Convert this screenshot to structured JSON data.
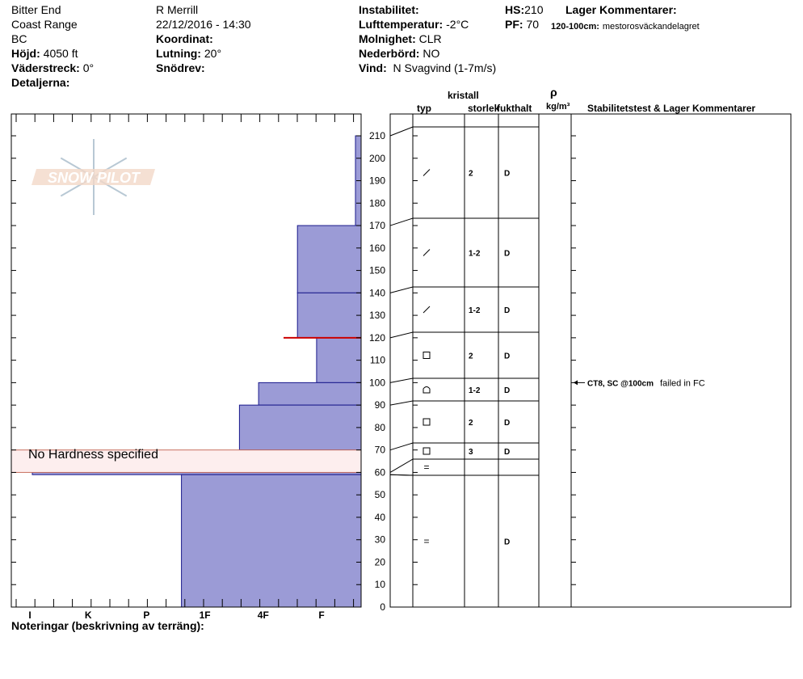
{
  "header": {
    "location": "Bitter End",
    "range": "Coast Range",
    "state": "BC",
    "elevation_label": "Höjd:",
    "elevation_value": "4050 ft",
    "aspect_label": "Väderstreck:",
    "aspect_value": "0°",
    "details_label": "Detaljerna:",
    "observer": "R Merrill",
    "datetime": "22/12/2016 - 14:30",
    "coord_label": "Koordinat:",
    "slope_label": "Lutning:",
    "slope_value": "20°",
    "drift_label": "Snödrev:",
    "instability_label": "Instabilitet:",
    "airtemp_label": "Lufttemperatur:",
    "airtemp_value": "-2°C",
    "sky_label": "Molnighet:",
    "sky_value": "CLR",
    "precip_label": "Nederbörd:",
    "precip_value": "NO",
    "wind_label": "Vind:",
    "wind_value": "N Svagvind (1-7m/s)",
    "hs_label": "HS:",
    "hs_value": "210",
    "pf_label": "PF:",
    "pf_value": "70",
    "layer_comments_label": "Lager Kommentarer:",
    "layer_comment_range": "120-100cm:",
    "layer_comment_text": "mestorosväckandelagret"
  },
  "columns": {
    "type": "typ",
    "crystal": "kristall",
    "size": "storlek",
    "moisture": "fukthalt",
    "rho": "ρ",
    "density_unit": "kg/m³",
    "stability": "Stabilitetstest & Lager Kommentarer"
  },
  "footer": {
    "notes_label": "Noteringar (beskrivning av terräng):"
  },
  "logo_text": "SNOW PILOT",
  "chart_data": {
    "type": "bar",
    "orientation": "horizontal",
    "y_axis": {
      "min": 0,
      "max": 210,
      "ticks": [
        0,
        10,
        20,
        30,
        40,
        50,
        60,
        70,
        80,
        90,
        100,
        110,
        120,
        130,
        140,
        150,
        160,
        170,
        180,
        190,
        200,
        210
      ]
    },
    "hardness_scale": [
      "I",
      "K",
      "P",
      "1F",
      "4F",
      "F"
    ],
    "hardness_index": {
      "I": 6,
      "K": 5,
      "P": 4,
      "1F": 3,
      "4F": 2,
      "F": 1
    },
    "layers": [
      {
        "bottom": 170,
        "top": 210,
        "hardness": "F",
        "grain": "/",
        "size": "2",
        "moisture": "D"
      },
      {
        "bottom": 140,
        "top": 170,
        "hardness": "4F",
        "grain": "/",
        "size": "1-2",
        "moisture": "D"
      },
      {
        "bottom": 120,
        "top": 140,
        "hardness": "4F",
        "grain": "/",
        "size": "1-2",
        "moisture": "D"
      },
      {
        "bottom": 100,
        "top": 120,
        "hardness": "4F-",
        "hardness_index": 1.67,
        "grain": "□",
        "size": "2",
        "moisture": "D"
      },
      {
        "bottom": 90,
        "top": 100,
        "hardness": "1F+",
        "hardness_index": 2.67,
        "grain": "⌂",
        "size": "1-2",
        "moisture": "D"
      },
      {
        "bottom": 70,
        "top": 90,
        "hardness": "1F",
        "grain": "□",
        "size": "2",
        "moisture": "D"
      },
      {
        "bottom": 60,
        "top": 70,
        "hardness": null,
        "grain": "□",
        "size": "3",
        "moisture": "D"
      },
      {
        "bottom": 59,
        "top": 60,
        "hardness": "I",
        "grain": "=",
        "size": "",
        "moisture": ""
      },
      {
        "bottom": 0,
        "top": 59,
        "hardness": "P",
        "grain": "=",
        "size": "",
        "moisture": "D"
      }
    ],
    "no_hardness_label": "No Hardness specified",
    "red_line_at": 120,
    "stability_tests": [
      {
        "depth": 100,
        "label": "CT8, SC @100cm",
        "comment": "failed in FC"
      }
    ]
  }
}
